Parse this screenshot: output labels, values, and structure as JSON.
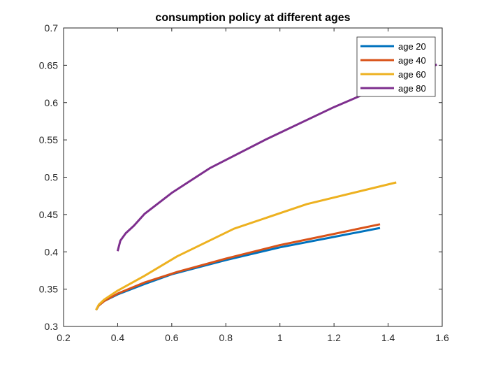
{
  "chart_data": {
    "type": "line",
    "title": "consumption policy at different ages",
    "xlabel": "",
    "ylabel": "",
    "xlim": [
      0.2,
      1.6
    ],
    "ylim": [
      0.3,
      0.7
    ],
    "xticks": [
      0.2,
      0.4,
      0.6,
      0.8,
      1.0,
      1.2,
      1.4,
      1.6
    ],
    "xtick_labels": [
      "0.2",
      "0.4",
      "0.6",
      "0.8",
      "1",
      "1.2",
      "1.4",
      "1.6"
    ],
    "yticks": [
      0.3,
      0.35,
      0.4,
      0.45,
      0.5,
      0.55,
      0.6,
      0.65,
      0.7
    ],
    "ytick_labels": [
      "0.3",
      "0.35",
      "0.4",
      "0.45",
      "0.5",
      "0.55",
      "0.6",
      "0.65",
      "0.7"
    ],
    "grid": false,
    "legend_position": "top-right",
    "series": [
      {
        "name": "age 20",
        "color": "#0072BD",
        "x": [
          0.32,
          0.33,
          0.35,
          0.4,
          0.5,
          0.6,
          0.8,
          1.0,
          1.2,
          1.37
        ],
        "y": [
          0.322,
          0.328,
          0.334,
          0.343,
          0.357,
          0.37,
          0.389,
          0.406,
          0.42,
          0.432
        ]
      },
      {
        "name": "age 40",
        "color": "#D95319",
        "x": [
          0.32,
          0.33,
          0.35,
          0.4,
          0.5,
          0.62,
          0.8,
          1.0,
          1.2,
          1.37
        ],
        "y": [
          0.322,
          0.328,
          0.334,
          0.344,
          0.359,
          0.373,
          0.391,
          0.409,
          0.424,
          0.437
        ]
      },
      {
        "name": "age 60",
        "color": "#EDB120",
        "x": [
          0.32,
          0.33,
          0.35,
          0.4,
          0.5,
          0.62,
          0.83,
          1.1,
          1.43
        ],
        "y": [
          0.322,
          0.329,
          0.336,
          0.348,
          0.368,
          0.394,
          0.431,
          0.464,
          0.493
        ]
      },
      {
        "name": "age 80",
        "color": "#7E2F8E",
        "x": [
          0.4,
          0.41,
          0.43,
          0.46,
          0.5,
          0.6,
          0.74,
          0.95,
          1.2,
          1.4,
          1.58
        ],
        "y": [
          0.401,
          0.415,
          0.425,
          0.435,
          0.451,
          0.479,
          0.512,
          0.551,
          0.594,
          0.625,
          0.651
        ]
      }
    ]
  }
}
